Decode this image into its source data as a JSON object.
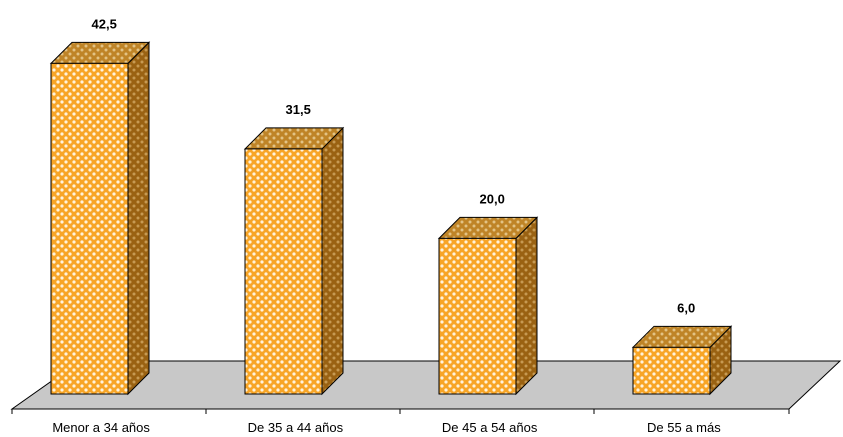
{
  "chart_data": {
    "type": "bar",
    "style": "3d-column",
    "categories": [
      "Menor a 34 años",
      "De 35 a 44 años",
      "De 45 a 54 años",
      "De 55 a más"
    ],
    "values": [
      42.5,
      31.5,
      20.0,
      6.0
    ],
    "value_labels": [
      "42,5",
      "31,5",
      "20,0",
      "6,0"
    ],
    "title": "",
    "xlabel": "",
    "ylabel": "",
    "ylim": [
      0,
      45
    ],
    "grid": false,
    "legend": "none",
    "bar_color": "#F8A526",
    "bar_pattern": "white-dots",
    "floor_color": "#C8C8C8"
  }
}
